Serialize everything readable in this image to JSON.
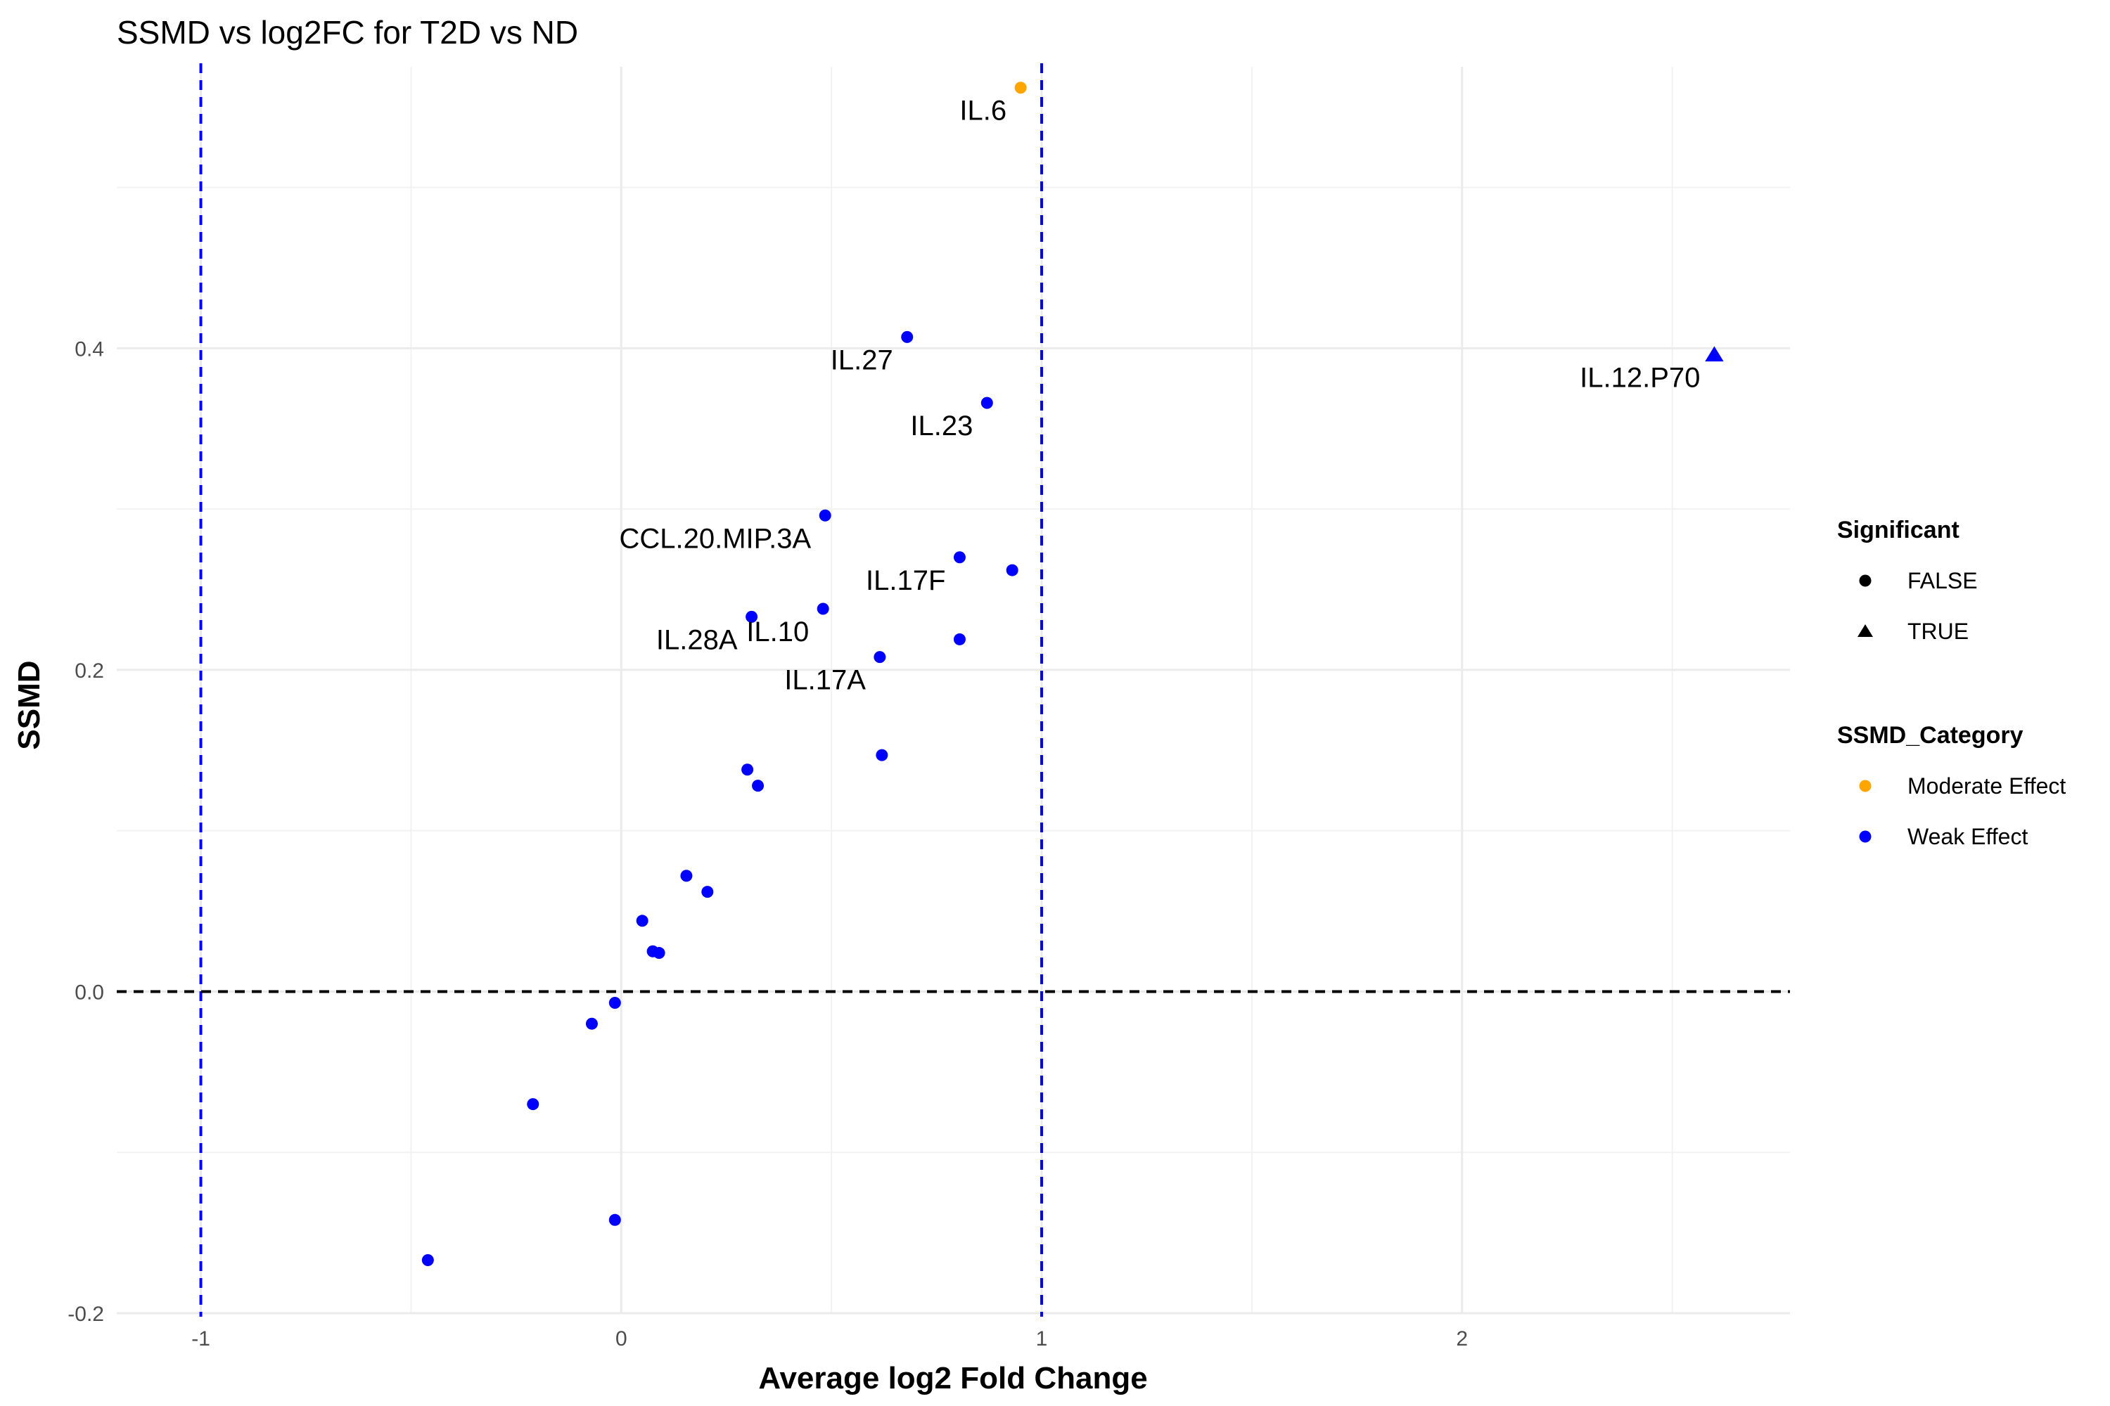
{
  "chart_data": {
    "type": "scatter",
    "title": "SSMD vs log2FC for T2D vs ND",
    "xlabel": "Average log2 Fold Change",
    "ylabel": "SSMD",
    "xlim": [
      -1.2,
      2.78
    ],
    "ylim": [
      -0.2,
      0.575
    ],
    "xticks": [
      -1,
      0,
      1,
      2
    ],
    "yticks": [
      -0.2,
      0,
      0.2,
      0.4
    ],
    "xtick_labels": [
      "-1",
      "0",
      "1",
      "2"
    ],
    "ytick_labels": [
      "-0.2",
      "0.0",
      "0.2",
      "0.4"
    ],
    "grid": true,
    "reference_lines": [
      {
        "axis": "x",
        "value": -1,
        "color": "#0000ff",
        "style": "dashed"
      },
      {
        "axis": "x",
        "value": 1,
        "color": "#0000ff",
        "style": "dashed"
      },
      {
        "axis": "y",
        "value": 0,
        "color": "#000000",
        "style": "dashed"
      }
    ],
    "colors": {
      "Moderate Effect": "#ffa500",
      "Weak Effect": "#0000ff"
    },
    "points": [
      {
        "x": 0.95,
        "y": 0.562,
        "category": "Moderate Effect",
        "significant": "FALSE",
        "label": "IL.6"
      },
      {
        "x": 2.6,
        "y": 0.396,
        "category": "Weak Effect",
        "significant": "TRUE",
        "label": "IL.12.P70"
      },
      {
        "x": 0.68,
        "y": 0.407,
        "category": "Weak Effect",
        "significant": "FALSE",
        "label": "IL.27"
      },
      {
        "x": 0.87,
        "y": 0.366,
        "category": "Weak Effect",
        "significant": "FALSE",
        "label": "IL.23"
      },
      {
        "x": 0.485,
        "y": 0.296,
        "category": "Weak Effect",
        "significant": "FALSE",
        "label": "CCL.20.MIP.3A"
      },
      {
        "x": 0.805,
        "y": 0.27,
        "category": "Weak Effect",
        "significant": "FALSE",
        "label": "IL.17F"
      },
      {
        "x": 0.93,
        "y": 0.262,
        "category": "Weak Effect",
        "significant": "FALSE",
        "label": ""
      },
      {
        "x": 0.48,
        "y": 0.238,
        "category": "Weak Effect",
        "significant": "FALSE",
        "label": "IL.10"
      },
      {
        "x": 0.31,
        "y": 0.233,
        "category": "Weak Effect",
        "significant": "FALSE",
        "label": "IL.28A"
      },
      {
        "x": 0.805,
        "y": 0.219,
        "category": "Weak Effect",
        "significant": "FALSE",
        "label": ""
      },
      {
        "x": 0.615,
        "y": 0.208,
        "category": "Weak Effect",
        "significant": "FALSE",
        "label": "IL.17A"
      },
      {
        "x": 0.62,
        "y": 0.147,
        "category": "Weak Effect",
        "significant": "FALSE",
        "label": ""
      },
      {
        "x": 0.3,
        "y": 0.138,
        "category": "Weak Effect",
        "significant": "FALSE",
        "label": ""
      },
      {
        "x": 0.325,
        "y": 0.128,
        "category": "Weak Effect",
        "significant": "FALSE",
        "label": ""
      },
      {
        "x": 0.155,
        "y": 0.072,
        "category": "Weak Effect",
        "significant": "FALSE",
        "label": ""
      },
      {
        "x": 0.205,
        "y": 0.062,
        "category": "Weak Effect",
        "significant": "FALSE",
        "label": ""
      },
      {
        "x": 0.05,
        "y": 0.044,
        "category": "Weak Effect",
        "significant": "FALSE",
        "label": ""
      },
      {
        "x": 0.075,
        "y": 0.025,
        "category": "Weak Effect",
        "significant": "FALSE",
        "label": ""
      },
      {
        "x": 0.09,
        "y": 0.024,
        "category": "Weak Effect",
        "significant": "FALSE",
        "label": ""
      },
      {
        "x": -0.015,
        "y": -0.007,
        "category": "Weak Effect",
        "significant": "FALSE",
        "label": ""
      },
      {
        "x": -0.07,
        "y": -0.02,
        "category": "Weak Effect",
        "significant": "FALSE",
        "label": ""
      },
      {
        "x": -0.21,
        "y": -0.07,
        "category": "Weak Effect",
        "significant": "FALSE",
        "label": ""
      },
      {
        "x": -0.015,
        "y": -0.142,
        "category": "Weak Effect",
        "significant": "FALSE",
        "label": ""
      },
      {
        "x": -0.46,
        "y": -0.167,
        "category": "Weak Effect",
        "significant": "FALSE",
        "label": ""
      }
    ],
    "legend": {
      "placement": "right",
      "groups": [
        {
          "title": "Significant",
          "entries": [
            {
              "label": "FALSE",
              "shape": "circle",
              "color": "#000000"
            },
            {
              "label": "TRUE",
              "shape": "triangle",
              "color": "#000000"
            }
          ]
        },
        {
          "title": "SSMD_Category",
          "entries": [
            {
              "label": "Moderate Effect",
              "shape": "circle",
              "color": "#ffa500"
            },
            {
              "label": "Weak Effect",
              "shape": "circle",
              "color": "#0000ff"
            }
          ]
        }
      ]
    }
  }
}
